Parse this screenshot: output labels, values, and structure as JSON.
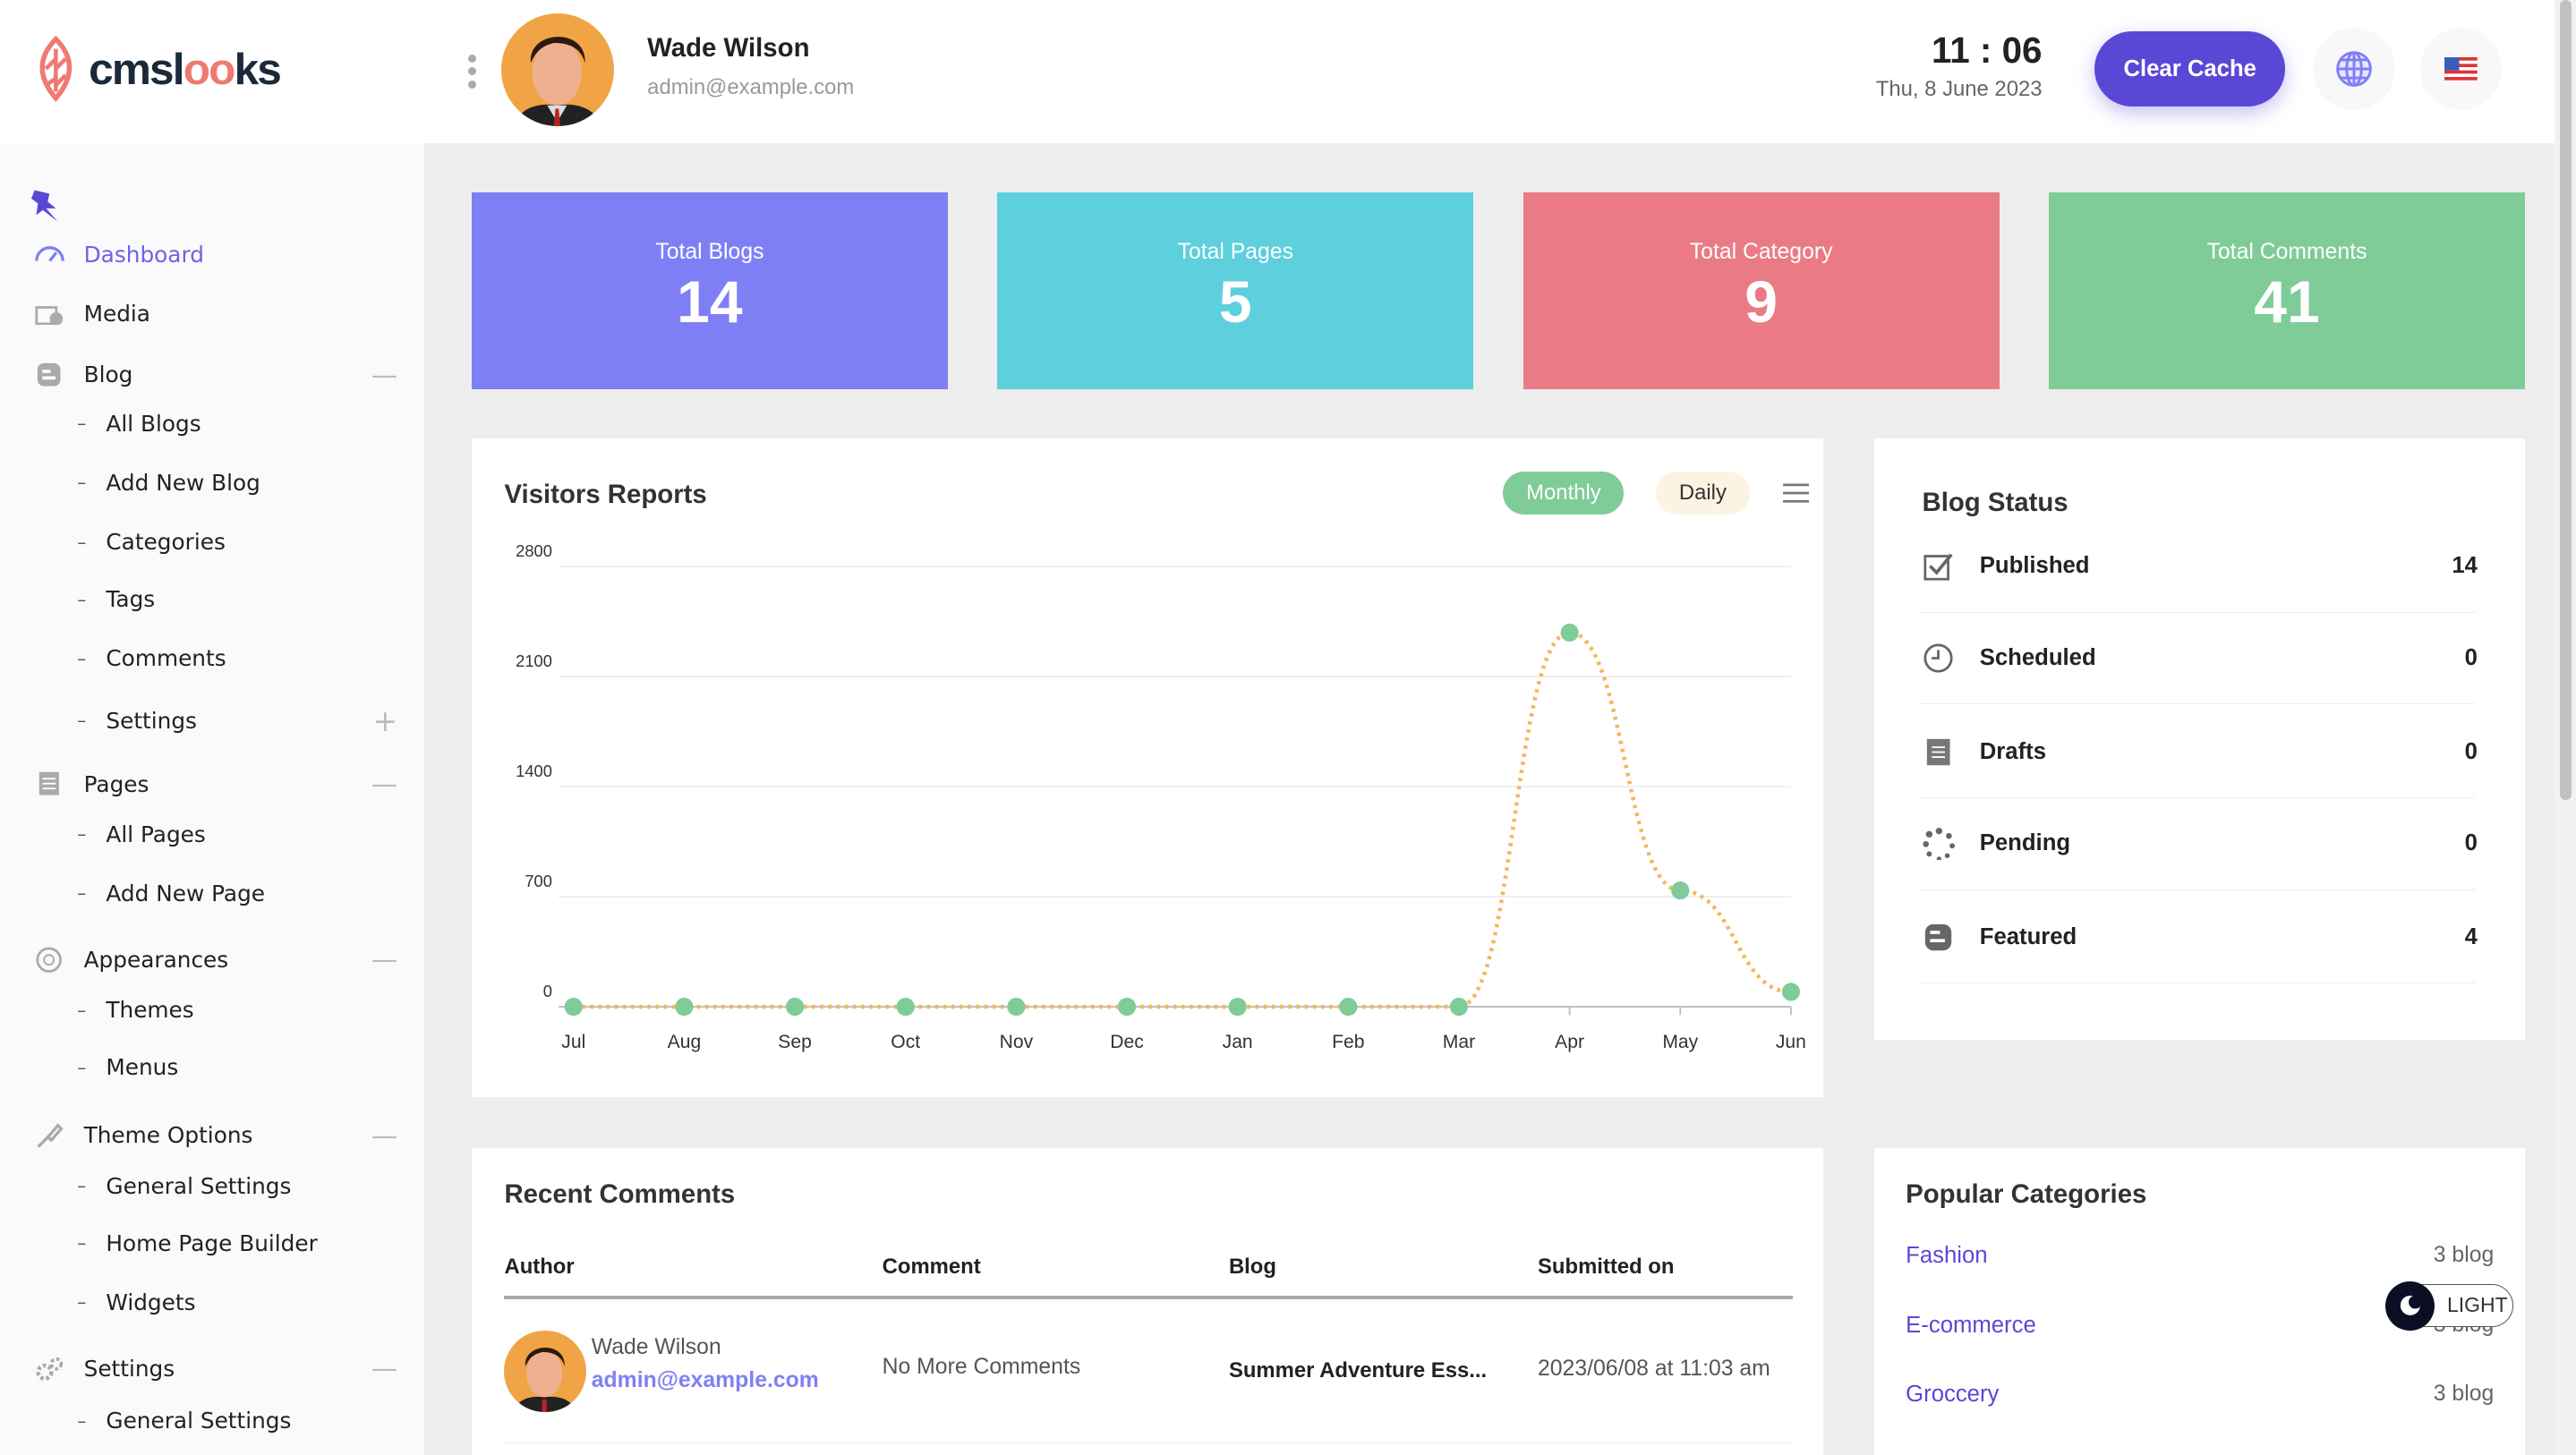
{
  "brand": {
    "logo_prefix": "cmsl",
    "logo_oo": "oo",
    "logo_suffix": "ks"
  },
  "user": {
    "name": "Wade Wilson",
    "email": "admin@example.com"
  },
  "clock": {
    "time": "11 : 06",
    "date": "Thu, 8 June 2023"
  },
  "header": {
    "clear_cache": "Clear Cache",
    "language_icon": "globe-icon",
    "flag_icon": "us-flag-icon"
  },
  "sidebar": {
    "items": [
      {
        "label": "Dashboard",
        "icon": "gauge-icon"
      },
      {
        "label": "Media",
        "icon": "media-icon"
      },
      {
        "label": "Blog",
        "icon": "blogger-icon",
        "sub": [
          "All Blogs",
          "Add New Blog",
          "Categories",
          "Tags",
          "Comments",
          "Settings"
        ]
      },
      {
        "label": "Pages",
        "icon": "page-icon",
        "sub": [
          "All Pages",
          "Add New Page"
        ]
      },
      {
        "label": "Appearances",
        "icon": "palette-icon",
        "sub": [
          "Themes",
          "Menus"
        ]
      },
      {
        "label": "Theme Options",
        "icon": "brush-icon",
        "sub": [
          "General Settings",
          "Home Page Builder",
          "Widgets"
        ]
      },
      {
        "label": "Settings",
        "icon": "gears-icon",
        "sub": [
          "General Settings"
        ]
      }
    ]
  },
  "stats": [
    {
      "label": "Total Blogs",
      "value": "14",
      "color": "#7f7ff5"
    },
    {
      "label": "Total Pages",
      "value": "5",
      "color": "#5ecfdd"
    },
    {
      "label": "Total Category",
      "value": "9",
      "color": "#ea7b84"
    },
    {
      "label": "Total Comments",
      "value": "41",
      "color": "#7fcc99"
    }
  ],
  "visitors": {
    "title": "Visitors Reports",
    "monthly": "Monthly",
    "daily": "Daily"
  },
  "chart_data": {
    "type": "line",
    "title": "Visitors Reports",
    "categories": [
      "Jul",
      "Aug",
      "Sep",
      "Oct",
      "Nov",
      "Dec",
      "Jan",
      "Feb",
      "Mar",
      "Apr",
      "May",
      "Jun"
    ],
    "values": [
      0,
      0,
      0,
      0,
      0,
      0,
      0,
      0,
      0,
      2380,
      740,
      95
    ],
    "yticks": [
      "0",
      "700",
      "1400",
      "2100",
      "2800"
    ],
    "ylim": [
      0,
      2800
    ],
    "grid": true,
    "line_color": "#f5b85a",
    "point_color": "#7fcc99"
  },
  "blog_status": {
    "title": "Blog Status",
    "rows": [
      {
        "label": "Published",
        "count": "14"
      },
      {
        "label": "Scheduled",
        "count": "0"
      },
      {
        "label": "Drafts",
        "count": "0"
      },
      {
        "label": "Pending",
        "count": "0"
      },
      {
        "label": "Featured",
        "count": "4"
      }
    ]
  },
  "recent_comments": {
    "title": "Recent Comments",
    "headers": [
      "Author",
      "Comment",
      "Blog",
      "Submitted on"
    ],
    "rows": [
      {
        "author": "Wade Wilson",
        "email": "admin@example.com",
        "comment": "No More Comments",
        "blog": "Summer Adventure Ess...",
        "submitted": "2023/06/08 at 11:03 am"
      }
    ]
  },
  "popular_categories": {
    "title": "Popular Categories",
    "rows": [
      {
        "name": "Fashion",
        "count": "3 blog"
      },
      {
        "name": "E-commerce",
        "count": "3 blog"
      },
      {
        "name": "Groccery",
        "count": "3 blog"
      }
    ]
  },
  "theme_toggle": {
    "label": "LIGHT"
  }
}
